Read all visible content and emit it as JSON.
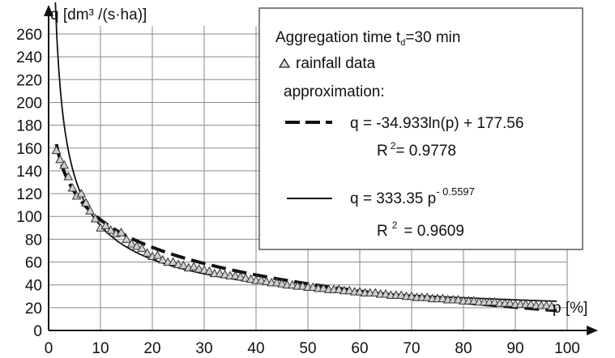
{
  "chart_data": {
    "type": "scatter",
    "xlabel": "p [%]",
    "ylabel": "q [dm³ /(s·ha)]",
    "xlim": [
      0,
      100
    ],
    "ylim": [
      0,
      260
    ],
    "x_ticks": [
      "0",
      "10",
      "20",
      "30",
      "40",
      "50",
      "60",
      "70",
      "80",
      "90",
      "100"
    ],
    "y_ticks": [
      "0",
      "20",
      "40",
      "60",
      "80",
      "100",
      "120",
      "140",
      "160",
      "180",
      "200",
      "220",
      "240",
      "260"
    ],
    "grid": true,
    "legend_position": "top-right",
    "legend": {
      "title_main": "Aggregation time t",
      "title_sub": "d",
      "title_rest": "=30 min",
      "data_label": "rainfall data",
      "approx_label": "approximation:",
      "log_fit": {
        "equation": "q = -34.933ln(p) + 177.56",
        "r2_label": "R",
        "r2_exp": "2",
        "r2_value": "= 0.9778"
      },
      "power_fit": {
        "equation_base": "q = 333.35 p",
        "exponent": "- 0.5597",
        "r2_label": "R",
        "r2_exp": "2",
        "r2_value": "= 0.9609"
      }
    },
    "series": [
      {
        "name": "rainfall data",
        "marker": "triangle",
        "x": [
          1.5,
          2.2,
          3,
          3.8,
          4.6,
          5.4,
          6.3,
          7.2,
          8,
          9,
          10,
          11,
          12,
          13,
          14,
          15,
          16,
          17,
          18,
          19,
          20,
          21,
          22,
          23,
          24,
          25,
          26,
          27,
          28,
          29,
          30,
          31,
          32,
          33,
          34,
          35,
          36,
          37,
          38,
          39,
          40,
          41,
          42,
          43,
          44,
          45,
          46,
          47,
          48,
          49,
          50,
          51,
          52,
          53,
          54,
          55,
          56,
          57,
          58,
          59,
          60,
          61,
          62,
          63,
          64,
          65,
          66,
          67,
          68,
          69,
          70,
          71,
          72,
          73,
          74,
          75,
          76,
          77,
          78,
          79,
          80,
          81,
          82,
          83,
          84,
          85,
          86,
          87,
          88,
          89,
          90,
          91,
          92,
          93,
          94,
          95,
          96,
          97
        ],
        "y": [
          158,
          150,
          145,
          135,
          125,
          118,
          120,
          112,
          105,
          98,
          90,
          92,
          88,
          85,
          86,
          80,
          76,
          74,
          72,
          68,
          65,
          66,
          62,
          60,
          60,
          58,
          57,
          55,
          56,
          54,
          53,
          52,
          50,
          50,
          49,
          48,
          48,
          47,
          46,
          45,
          44,
          44,
          43,
          42,
          42,
          41,
          40,
          40,
          39,
          39,
          38,
          38,
          37,
          37,
          36,
          36,
          36,
          35,
          35,
          34,
          34,
          33,
          33,
          33,
          32,
          32,
          31,
          31,
          31,
          30,
          30,
          29,
          29,
          29,
          28,
          28,
          28,
          27,
          27,
          27,
          26,
          26,
          26,
          25,
          25,
          25,
          25,
          24,
          24,
          24,
          23,
          23,
          23,
          23,
          22,
          22,
          22,
          21
        ]
      },
      {
        "name": "q = -34.933ln(p) + 177.56",
        "style": "dashed",
        "function": "log",
        "a": -34.933,
        "b": 177.56,
        "x_range": [
          1.5,
          98
        ]
      },
      {
        "name": "q = 333.35 p^-0.5597",
        "style": "solid",
        "function": "power",
        "coef": 333.35,
        "exp": -0.5597,
        "x_range": [
          1.3,
          98
        ]
      }
    ]
  }
}
